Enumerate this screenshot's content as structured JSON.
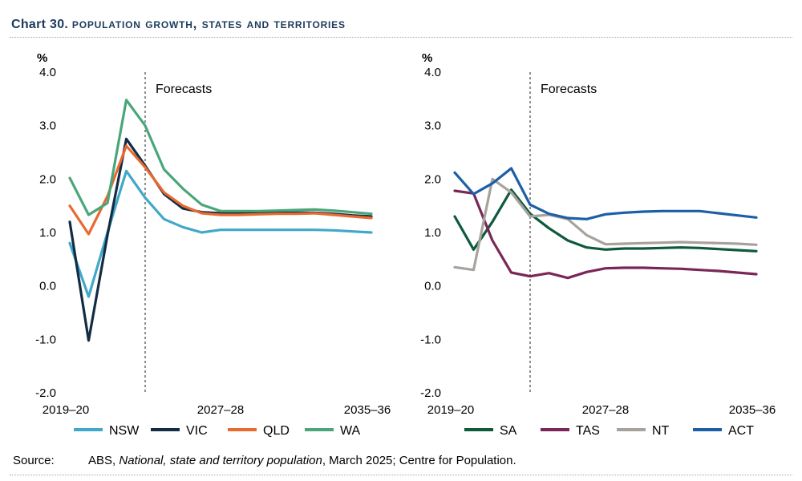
{
  "header": {
    "chart_number": "Chart 30.",
    "chart_title": "Population growth, states and territories"
  },
  "footer": {
    "source_label": "Source:",
    "source_publisher": "ABS, ",
    "source_title": "National, state and territory population",
    "source_rest": ", March 2025; Centre for Population."
  },
  "chart_data": [
    {
      "type": "line",
      "unit": "%",
      "ylim": [
        -2.0,
        4.0
      ],
      "y_ticks": [
        "4.0",
        "3.0",
        "2.0",
        "1.0",
        "0.0",
        "-1.0",
        "-2.0"
      ],
      "x_labels": [
        "2019–20",
        "2027–28",
        "2035–36"
      ],
      "x_label_positions": [
        0,
        8,
        16
      ],
      "forecast_label": "Forecasts",
      "forecast_start": 4,
      "grid": false,
      "legend": "bottom",
      "series": [
        {
          "name": "NSW",
          "color": "#41a8c9",
          "values": [
            0.8,
            -0.2,
            1.0,
            2.15,
            1.65,
            1.25,
            1.1,
            1.0,
            1.05,
            1.05,
            1.05,
            1.05,
            1.05,
            1.05,
            1.04,
            1.02,
            1.0
          ]
        },
        {
          "name": "VIC",
          "color": "#122c45",
          "values": [
            1.2,
            -1.02,
            0.95,
            2.75,
            2.25,
            1.72,
            1.45,
            1.38,
            1.36,
            1.36,
            1.36,
            1.37,
            1.37,
            1.37,
            1.35,
            1.32,
            1.3
          ]
        },
        {
          "name": "QLD",
          "color": "#e86a30",
          "values": [
            1.5,
            0.97,
            1.68,
            2.62,
            2.22,
            1.75,
            1.5,
            1.36,
            1.33,
            1.33,
            1.34,
            1.35,
            1.35,
            1.36,
            1.33,
            1.3,
            1.27
          ]
        },
        {
          "name": "WA",
          "color": "#4aa67a",
          "values": [
            2.02,
            1.33,
            1.55,
            3.48,
            3.0,
            2.18,
            1.82,
            1.52,
            1.4,
            1.4,
            1.4,
            1.41,
            1.42,
            1.43,
            1.41,
            1.38,
            1.35
          ]
        }
      ]
    },
    {
      "type": "line",
      "unit": "%",
      "ylim": [
        -2.0,
        4.0
      ],
      "y_ticks": [
        "4.0",
        "3.0",
        "2.0",
        "1.0",
        "0.0",
        "-1.0",
        "-2.0"
      ],
      "x_labels": [
        "2019–20",
        "2027–28",
        "2035–36"
      ],
      "x_label_positions": [
        0,
        8,
        16
      ],
      "forecast_label": "Forecasts",
      "forecast_start": 4,
      "grid": false,
      "legend": "bottom",
      "series": [
        {
          "name": "SA",
          "color": "#0e5a3a",
          "values": [
            1.3,
            0.68,
            1.2,
            1.8,
            1.35,
            1.08,
            0.85,
            0.72,
            0.68,
            0.7,
            0.7,
            0.71,
            0.72,
            0.71,
            0.69,
            0.67,
            0.65
          ]
        },
        {
          "name": "TAS",
          "color": "#7a2758",
          "values": [
            1.78,
            1.73,
            0.85,
            0.25,
            0.18,
            0.24,
            0.15,
            0.26,
            0.33,
            0.34,
            0.34,
            0.33,
            0.32,
            0.3,
            0.28,
            0.25,
            0.22
          ]
        },
        {
          "name": "NT",
          "color": "#a8a29d",
          "values": [
            0.35,
            0.3,
            2.0,
            1.75,
            1.3,
            1.33,
            1.25,
            0.95,
            0.78,
            0.79,
            0.8,
            0.81,
            0.82,
            0.81,
            0.8,
            0.79,
            0.77
          ]
        },
        {
          "name": "ACT",
          "color": "#1b5fa6",
          "values": [
            2.12,
            1.72,
            1.92,
            2.2,
            1.52,
            1.35,
            1.27,
            1.25,
            1.34,
            1.37,
            1.39,
            1.4,
            1.4,
            1.4,
            1.36,
            1.32,
            1.28
          ]
        }
      ]
    }
  ]
}
